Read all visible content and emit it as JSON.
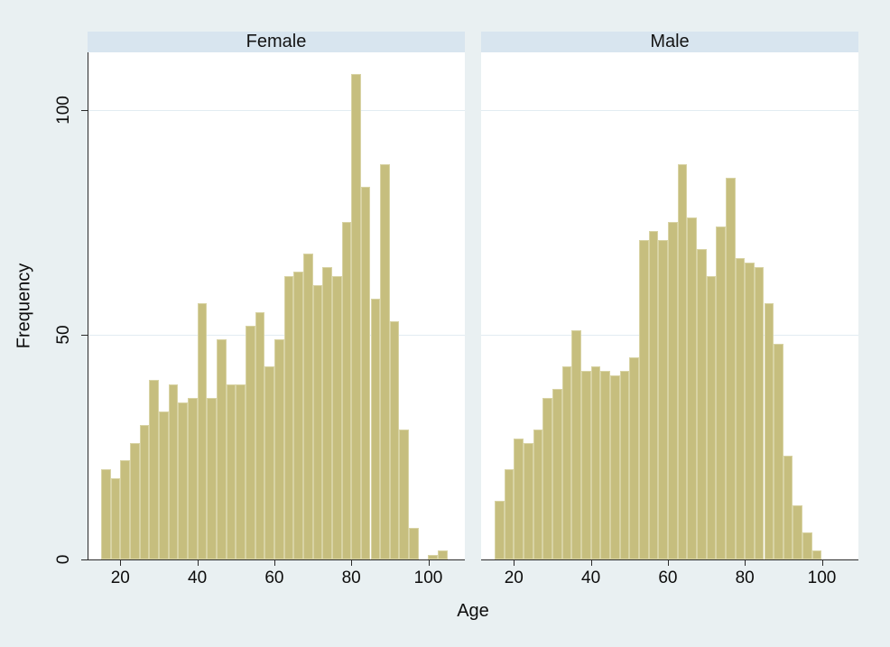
{
  "figure": {
    "background": "#e9f0f2",
    "band": "#d8e5ef",
    "plot_bg": "#ffffff",
    "bar_fill": "#c6be7e",
    "bar_border": "#d8d3a4",
    "grid": "#e2ecf2",
    "axis": "#2a2a2a",
    "text": "#0d0d0d"
  },
  "chart_data": {
    "type": "bar",
    "chart_kind": "histogram, faceted by sex",
    "title": "",
    "xlabel": "Age",
    "ylabel": "Frequency",
    "x_ticks": [
      20,
      40,
      60,
      80,
      100
    ],
    "y_ticks": [
      0,
      50,
      100
    ],
    "y_gridlines": [
      50,
      100
    ],
    "x_range": [
      11.5,
      109.5
    ],
    "y_range": [
      0,
      112.8
    ],
    "bin_start": 15,
    "bin_width": 2.5,
    "grid": "horizontal gridlines at 50 and 100",
    "legend": "none",
    "panels": [
      {
        "label": "Female",
        "values": [
          20,
          18,
          22,
          26,
          30,
          40,
          33,
          39,
          35,
          36,
          57,
          36,
          49,
          39,
          39,
          52,
          55,
          43,
          49,
          63,
          64,
          68,
          61,
          65,
          63,
          75,
          108,
          83,
          58,
          88,
          53,
          29,
          7,
          0,
          1,
          2
        ]
      },
      {
        "label": "Male",
        "values": [
          13,
          20,
          27,
          26,
          29,
          36,
          38,
          43,
          51,
          42,
          43,
          42,
          41,
          42,
          45,
          71,
          73,
          71,
          75,
          88,
          76,
          69,
          63,
          74,
          85,
          67,
          66,
          65,
          57,
          48,
          23,
          12,
          6,
          2
        ]
      }
    ]
  }
}
